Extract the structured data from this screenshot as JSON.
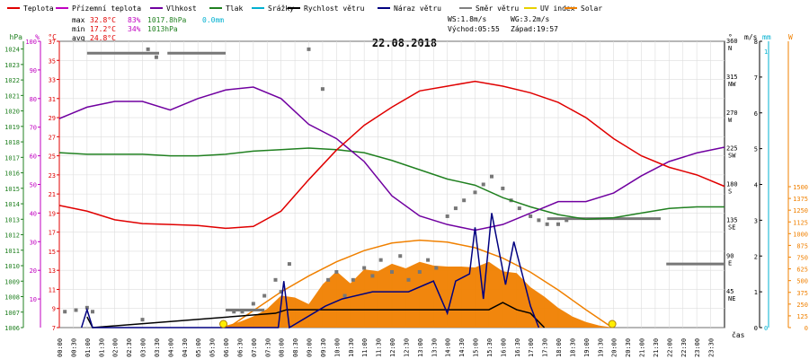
{
  "legend": [
    {
      "label": "Teplota",
      "color": "#e00000"
    },
    {
      "label": "Přízemní teplota",
      "color": "#c000c0"
    },
    {
      "label": "Vlhkost",
      "color": "#7000a0"
    },
    {
      "label": "Tlak",
      "color": "#208020"
    },
    {
      "label": "Srážky",
      "color": "#00b0d0"
    },
    {
      "label": "Rychlost větru",
      "color": "#000000"
    },
    {
      "label": "Náraz větru",
      "color": "#000080"
    },
    {
      "label": "Směr větru",
      "color": "#808080"
    },
    {
      "label": "UV index",
      "color": "#e8d000"
    },
    {
      "label": "Solar",
      "color": "#f08000"
    }
  ],
  "stats": {
    "max_label": "max",
    "max_temp": "32.8°C",
    "max_hum": "83%",
    "max_press": "1017.8hPa",
    "precip": "0.0mm",
    "min_label": "min",
    "min_temp": "17.2°C",
    "min_hum": "34%",
    "min_press": "1013hPa",
    "avg_label": "avg",
    "avg_temp": "24.8°C",
    "ws": "WS:1.8m/s",
    "wg": "WG:3.2m/s",
    "sunrise": "Východ:05:55",
    "sunset": "Západ:19:57"
  },
  "date": "22.08.2018",
  "time_axis_label": "čas",
  "chart_data": {
    "type": "line",
    "title": "22.08.2018",
    "x_ticks": [
      "00:00",
      "00:30",
      "01:00",
      "01:30",
      "02:00",
      "02:30",
      "03:00",
      "03:30",
      "04:00",
      "04:30",
      "05:00",
      "05:30",
      "06:00",
      "06:30",
      "07:00",
      "07:30",
      "08:00",
      "08:30",
      "09:00",
      "09:30",
      "10:00",
      "10:30",
      "11:00",
      "11:30",
      "12:00",
      "12:30",
      "13:00",
      "13:30",
      "14:00",
      "14:30",
      "15:00",
      "15:30",
      "16:00",
      "16:30",
      "17:00",
      "17:30",
      "18:00",
      "18:30",
      "19:00",
      "19:30",
      "20:00",
      "20:30",
      "21:00",
      "21:30",
      "22:00",
      "22:30",
      "23:00",
      "23:30"
    ],
    "axes": {
      "pressure_hpa": {
        "label": "hPa",
        "color": "#208020",
        "ticks": [
          "1006",
          "1007",
          "1008",
          "1009",
          "1010",
          "1011",
          "1012",
          "1013",
          "1014",
          "1015",
          "1016",
          "1017",
          "1018",
          "1019",
          "1020",
          "1021",
          "1022",
          "1023",
          "1024"
        ],
        "range": [
          1006,
          1024.5
        ]
      },
      "humidity_pct": {
        "label": "%",
        "color": "#c000c0",
        "ticks": [
          "10",
          "20",
          "30",
          "40",
          "50",
          "60",
          "70",
          "80",
          "90",
          "100"
        ],
        "range": [
          0,
          100
        ]
      },
      "temp_c": {
        "label": "°C",
        "color": "#e00000",
        "ticks": [
          "7",
          "9",
          "11",
          "13",
          "15",
          "17",
          "19",
          "21",
          "23",
          "25",
          "27",
          "29",
          "31",
          "33",
          "35",
          "37"
        ],
        "range": [
          7,
          37
        ]
      },
      "wind_dir_deg": {
        "label": "°",
        "ticks": [
          "0",
          "45",
          "90",
          "135",
          "180",
          "225",
          "270",
          "315",
          "360"
        ],
        "dir_labels": [
          "",
          "NE",
          "E",
          "SE",
          "S",
          "SW",
          "W",
          "NW",
          "N"
        ],
        "range": [
          0,
          360
        ]
      },
      "wind_speed_ms": {
        "label": "m/s",
        "ticks": [
          "0",
          "1",
          "2",
          "3",
          "4",
          "5",
          "6",
          "7",
          "8"
        ],
        "range": [
          0,
          8
        ]
      },
      "precip_mm": {
        "label": "mm",
        "color": "#00b0d0",
        "ticks": [
          "0",
          "1"
        ],
        "range": [
          0,
          1
        ]
      },
      "solar_w": {
        "label": "W",
        "color": "#f08000",
        "ticks": [
          "0",
          "125",
          "250",
          "375",
          "500",
          "625",
          "750",
          "875",
          "1000",
          "1125",
          "1250",
          "1375",
          "1500"
        ],
        "range": [
          0,
          1500
        ]
      }
    },
    "series": [
      {
        "name": "Teplota",
        "unit": "°C",
        "color": "#e00000",
        "x": [
          0,
          1,
          2,
          3,
          4,
          5,
          6,
          7,
          8,
          9,
          10,
          11,
          12,
          13,
          14,
          15,
          16,
          17,
          18,
          19,
          20,
          21,
          22,
          23,
          24
        ],
        "y": [
          19.8,
          19.2,
          18.3,
          17.9,
          17.8,
          17.7,
          17.4,
          17.6,
          19.2,
          22.5,
          25.6,
          28.2,
          30.1,
          31.8,
          32.3,
          32.8,
          32.3,
          31.6,
          30.6,
          29.0,
          26.8,
          25.0,
          23.8,
          23.0,
          21.8
        ]
      },
      {
        "name": "Vlhkost",
        "unit": "%",
        "color": "#7000a0",
        "x": [
          0,
          1,
          2,
          3,
          4,
          5,
          6,
          7,
          8,
          9,
          10,
          11,
          12,
          13,
          14,
          15,
          16,
          17,
          18,
          19,
          20,
          21,
          22,
          23,
          24
        ],
        "y": [
          73,
          77,
          79,
          79,
          76,
          80,
          83,
          84,
          80,
          71,
          66,
          58,
          46,
          39,
          36,
          34,
          36,
          40,
          44,
          44,
          47,
          53,
          58,
          61,
          63
        ]
      },
      {
        "name": "Tlak",
        "unit": "hPa",
        "color": "#208020",
        "x": [
          0,
          1,
          2,
          3,
          4,
          5,
          6,
          7,
          8,
          9,
          10,
          11,
          12,
          13,
          14,
          15,
          16,
          17,
          18,
          19,
          20,
          21,
          22,
          23,
          24
        ],
        "y": [
          1017.3,
          1017.2,
          1017.2,
          1017.2,
          1017.1,
          1017.1,
          1017.2,
          1017.4,
          1017.5,
          1017.6,
          1017.5,
          1017.3,
          1016.8,
          1016.2,
          1015.6,
          1015.2,
          1014.4,
          1013.8,
          1013.3,
          1013.0,
          1013.1,
          1013.4,
          1013.7,
          1013.8,
          1013.8
        ]
      },
      {
        "name": "Solar",
        "unit": "W",
        "color": "#f08000",
        "x": [
          6,
          6.5,
          7,
          7.5,
          8,
          8.5,
          9,
          9.5,
          10,
          10.5,
          11,
          11.5,
          12,
          12.5,
          13,
          13.5,
          14,
          14.5,
          15,
          15.5,
          16,
          16.5,
          17,
          17.5,
          18,
          18.5,
          19,
          19.5,
          20
        ],
        "y": [
          20,
          60,
          120,
          200,
          340,
          320,
          250,
          460,
          600,
          470,
          620,
          600,
          680,
          630,
          700,
          660,
          650,
          650,
          640,
          700,
          600,
          580,
          430,
          330,
          210,
          120,
          60,
          20,
          0
        ]
      },
      {
        "name": "Solar (theoretical)",
        "unit": "W",
        "color": "#f08000",
        "x": [
          6.1,
          7,
          8,
          9,
          10,
          11,
          12,
          13,
          14,
          15,
          16,
          17,
          18,
          19,
          19.95
        ],
        "y": [
          0,
          180,
          380,
          550,
          700,
          820,
          900,
          930,
          910,
          850,
          740,
          590,
          400,
          190,
          0
        ]
      },
      {
        "name": "Rychlost větru",
        "unit": "m/s",
        "color": "#000000",
        "x": [
          1,
          1.2,
          7.8,
          8.2,
          9,
          9.5,
          10,
          10.5,
          11,
          11.5,
          12,
          12.5,
          13,
          13.5,
          14,
          14.5,
          15,
          15.5,
          16,
          16.5,
          17,
          17.5
        ],
        "y": [
          0.3,
          0,
          0.4,
          0.5,
          0.5,
          0.5,
          0.5,
          0.5,
          0.5,
          0.5,
          0.5,
          0.5,
          0.5,
          0.5,
          0.5,
          0.5,
          0.5,
          0.5,
          0.7,
          0.5,
          0.4,
          0
        ]
      },
      {
        "name": "Náraz větru",
        "unit": "m/s",
        "color": "#000080",
        "x": [
          0.8,
          1,
          1.2,
          7.9,
          8.1,
          8.3,
          9.6,
          10.2,
          11.3,
          12.6,
          13.5,
          14,
          14.3,
          14.8,
          15,
          15.3,
          15.6,
          16.1,
          16.4,
          17,
          17.3
        ],
        "y": [
          0,
          0.5,
          0,
          0,
          1.3,
          0,
          0.6,
          0.8,
          1.0,
          1.0,
          1.3,
          0.4,
          1.3,
          1.5,
          2.8,
          0.8,
          3.2,
          1.2,
          2.4,
          0.6,
          0
        ]
      },
      {
        "name": "Směr větru",
        "unit": "°",
        "x": [
          0.2,
          0.6,
          1.0,
          1.2,
          3.0,
          3.2,
          3.5,
          6.3,
          6.6,
          7.0,
          7.4,
          7.8,
          8.0,
          8.3,
          9.0,
          9.5,
          9.7,
          10.0,
          10.3,
          10.6,
          11.0,
          11.3,
          11.6,
          12.0,
          12.3,
          12.6,
          13.0,
          13.3,
          13.6,
          14.0,
          14.3,
          14.6,
          15.0,
          15.3,
          15.6,
          16.0,
          16.3,
          16.6,
          17.0,
          17.3,
          17.6,
          18.0,
          18.3
        ],
        "y": [
          20,
          22,
          25,
          20,
          10,
          350,
          340,
          20,
          20,
          30,
          40,
          60,
          45,
          80,
          350,
          300,
          60,
          70,
          40,
          60,
          75,
          65,
          85,
          70,
          90,
          60,
          70,
          85,
          75,
          140,
          150,
          160,
          170,
          180,
          190,
          175,
          160,
          150,
          140,
          135,
          130,
          130,
          135
        ]
      }
    ],
    "ranges_flat": [
      {
        "name": "Směr větru",
        "from": 1.0,
        "to": 3.6,
        "value": 345
      },
      {
        "name": "Směr větru",
        "from": 3.9,
        "to": 6.0,
        "value": 345
      },
      {
        "name": "Směr větru",
        "from": 6.0,
        "to": 7.4,
        "value": 22
      },
      {
        "name": "Směr větru",
        "from": 17.6,
        "to": 21.7,
        "value": 137
      },
      {
        "name": "Směr větru",
        "from": 21.9,
        "to": 24.0,
        "value": 80
      }
    ],
    "sun_markers": [
      {
        "x": 5.92,
        "label": "Východ"
      },
      {
        "x": 19.95,
        "label": "Západ"
      }
    ]
  }
}
